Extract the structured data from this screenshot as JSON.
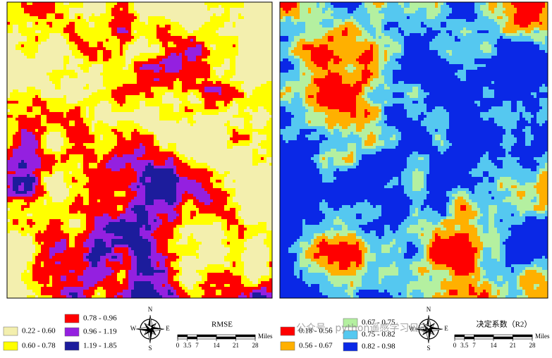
{
  "maps": [
    {
      "title": "RMSE",
      "legend": [
        {
          "label": "0.22 - 0.60",
          "color": "#f3efae"
        },
        {
          "label": "0.60 - 0.78",
          "color": "#ffff00"
        },
        {
          "label": "0.78 - 0.96",
          "color": "#ff0000"
        },
        {
          "label": "0.96 - 1.19",
          "color": "#9420e0"
        },
        {
          "label": "1.19 - 1.85",
          "color": "#1c1c9c"
        }
      ],
      "compass": {
        "n": "N",
        "s": "S",
        "e": "E",
        "w": "W"
      },
      "scale": {
        "ticks": [
          0,
          3.5,
          7,
          14,
          21,
          28
        ],
        "unit": "Miles"
      }
    },
    {
      "title": "决定系数（R2）",
      "legend": [
        {
          "label": "0.18 - 0.56",
          "color": "#ff0000"
        },
        {
          "label": "0.56 - 0.67",
          "color": "#ffb000"
        },
        {
          "label": "0.67 - 0.75",
          "color": "#b4f0a0"
        },
        {
          "label": "0.75 - 0.82",
          "color": "#55c8f0"
        },
        {
          "label": "0.82 - 0.98",
          "color": "#0a28e6"
        }
      ],
      "compass": {
        "n": "N",
        "s": "S",
        "e": "E",
        "w": "W"
      },
      "scale": {
        "ticks": [
          0,
          3.5,
          7,
          14,
          21,
          28
        ],
        "unit": "Miles"
      }
    }
  ],
  "watermark": "公众号 · python遥感学习日志"
}
